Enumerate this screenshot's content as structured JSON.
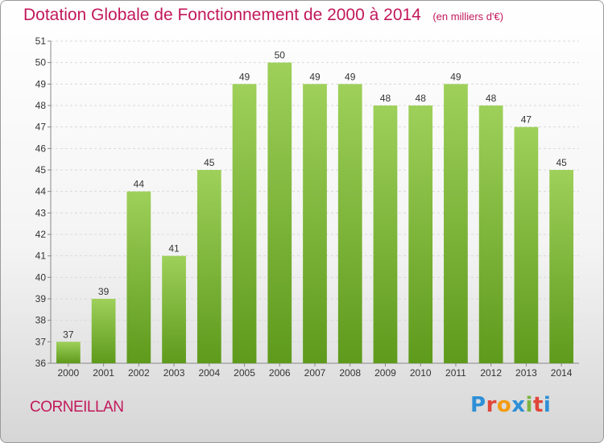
{
  "header": {
    "title": "Dotation Globale de Fonctionnement de 2000 à 2014",
    "subtitle": "(en milliers d'€)"
  },
  "footer": {
    "city": "CORNEILLAN",
    "brand": "Proxiti",
    "brand_colors": [
      "#2e8fd6",
      "#e0463a",
      "#f39c12",
      "#2e8fd6",
      "#7cb342",
      "#e0463a",
      "#2e8fd6"
    ]
  },
  "colors": {
    "bar_light": "#9ed05a",
    "bar_dark": "#5e9a1c",
    "accent": "#c2185b"
  },
  "chart_data": {
    "type": "bar",
    "title": "Dotation Globale de Fonctionnement de 2000 à 2014",
    "categories": [
      "2000",
      "2001",
      "2002",
      "2003",
      "2004",
      "2005",
      "2006",
      "2007",
      "2008",
      "2009",
      "2010",
      "2011",
      "2012",
      "2013",
      "2014"
    ],
    "values": [
      37,
      39,
      44,
      41,
      45,
      49,
      50,
      49,
      49,
      48,
      48,
      49,
      48,
      47,
      45
    ],
    "ylim": [
      36,
      51
    ],
    "yticks": [
      36,
      37,
      38,
      39,
      40,
      41,
      42,
      43,
      44,
      45,
      46,
      47,
      48,
      49,
      50,
      51
    ],
    "grid": true,
    "xlabel": "",
    "ylabel": ""
  }
}
